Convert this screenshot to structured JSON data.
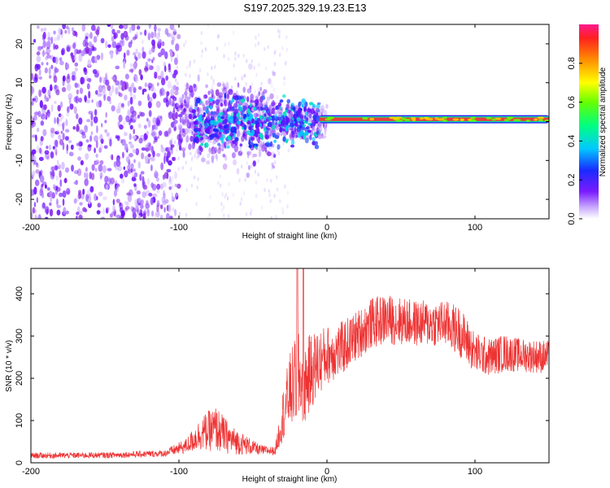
{
  "title": "S197.2025.329.19.23.E13",
  "colors": {
    "trace": "#ee3333",
    "ridge": "#e83e3e",
    "accent_purple": "#7a1bff"
  },
  "chart_data": [
    {
      "type": "heatmap",
      "name": "spectrogram",
      "xlabel": "Height of straight line (km)",
      "ylabel": "Frequency (Hz)",
      "xlim": [
        -200,
        150
      ],
      "ylim": [
        -25,
        25
      ],
      "x_ticks": [
        -200,
        -100,
        0,
        100
      ],
      "y_ticks": [
        20,
        10,
        0,
        -10,
        -20
      ],
      "colorbar": {
        "label": "Normalized spectral amplitude",
        "range": [
          0,
          1
        ],
        "ticks": [
          0.0,
          0.2,
          0.4,
          0.6,
          0.8
        ],
        "tick_labels": [
          "0.0",
          "0.2",
          "0.4",
          "0.6",
          "0.8"
        ]
      },
      "ridge": {
        "x_start": -5,
        "x_end": 150,
        "frequency": 0.6
      },
      "noise_regions": [
        {
          "x_range": [
            -200,
            -100
          ],
          "frequency_range": [
            -25,
            25
          ],
          "density": "high"
        },
        {
          "x_range": [
            -100,
            -35
          ],
          "frequency_range": [
            -15,
            15
          ],
          "density": "medium"
        },
        {
          "x_range": [
            -35,
            0
          ],
          "frequency_range": [
            -4,
            4
          ],
          "density": "low"
        }
      ]
    },
    {
      "type": "line",
      "name": "snr",
      "xlabel": "Height of straight line (km)",
      "ylabel": "SNR (10 * v/v)",
      "xlim": [
        -200,
        150
      ],
      "ylim": [
        0,
        460
      ],
      "x_ticks": [
        -200,
        -100,
        0,
        100
      ],
      "y_ticks": [
        0,
        100,
        200,
        300,
        400
      ],
      "envelope": {
        "x": [
          -200,
          -150,
          -110,
          -95,
          -85,
          -75,
          -65,
          -45,
          -35,
          -30,
          -25,
          -20,
          -15,
          -10,
          -5,
          0,
          10,
          20,
          30,
          40,
          60,
          80,
          90,
          100,
          110,
          120,
          130,
          150
        ],
        "y": [
          17,
          18,
          22,
          40,
          70,
          80,
          55,
          30,
          28,
          110,
          170,
          200,
          190,
          220,
          240,
          255,
          270,
          300,
          330,
          340,
          330,
          330,
          310,
          260,
          250,
          260,
          255,
          250
        ],
        "amp": [
          7,
          7,
          8,
          18,
          40,
          55,
          35,
          12,
          10,
          60,
          90,
          110,
          100,
          90,
          80,
          70,
          65,
          60,
          60,
          60,
          55,
          55,
          60,
          50,
          45,
          45,
          40,
          40
        ]
      },
      "spikes": [
        {
          "x": -20,
          "value": 460
        },
        {
          "x": -16,
          "value": 460
        }
      ]
    }
  ]
}
